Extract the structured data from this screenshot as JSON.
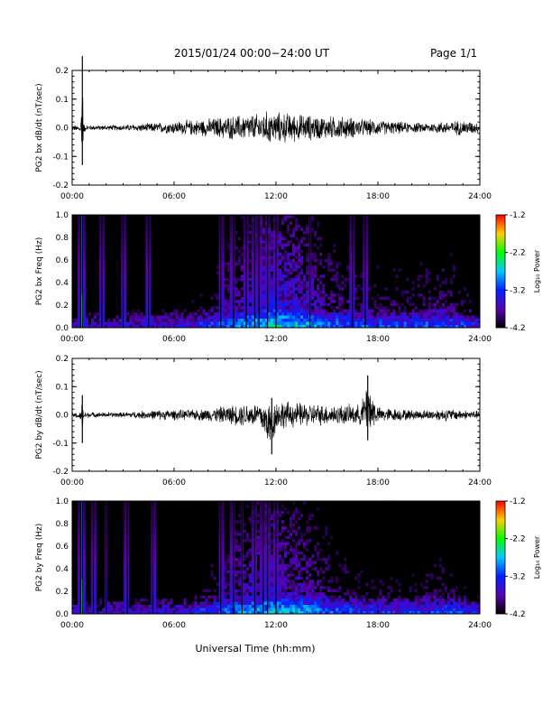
{
  "header": {
    "title": "2015/01/24  00:00−24:00 UT",
    "page": "Page 1/1"
  },
  "xaxis_label": "Universal Time (hh:mm)",
  "colorbar": {
    "label": "Log₁₀ Power",
    "ticks": [
      "-1.2",
      "-2.2",
      "-3.2",
      "-4.2"
    ],
    "colors": [
      "#ff0000",
      "#ffd000",
      "#00ff00",
      "#00c8ff",
      "#0020ff",
      "#5a00b4",
      "#000000"
    ]
  },
  "chart_data": [
    {
      "type": "line",
      "panel": "bx_timeseries",
      "ylabel": "PG2 bx dB/dt (nT/sec)",
      "xlim": [
        "00:00",
        "24:00"
      ],
      "ylim": [
        -0.2,
        0.2
      ],
      "xticks": [
        "00:00",
        "06:00",
        "12:00",
        "18:00",
        "24:00"
      ],
      "yticks": [
        "-0.2",
        "-0.1",
        "0.0",
        "0.1",
        "0.2"
      ],
      "series": [
        {
          "x": [
            "00:00",
            "00:30",
            "00:36",
            "00:40",
            "00:48",
            "01:00",
            "02:00",
            "03:00",
            "04:00",
            "05:00",
            "06:00",
            "07:00",
            "08:00",
            "09:00",
            "10:00",
            "11:00",
            "11:30",
            "12:00",
            "12:30",
            "13:00",
            "14:00",
            "15:00",
            "16:00",
            "17:00",
            "18:00",
            "19:00",
            "20:00",
            "21:00",
            "22:00",
            "23:00",
            "24:00"
          ],
          "envelope_max": [
            0.01,
            0.01,
            0.25,
            0.02,
            0.01,
            0.01,
            0.01,
            0.012,
            0.015,
            0.02,
            0.025,
            0.03,
            0.035,
            0.045,
            0.05,
            0.055,
            0.065,
            0.06,
            0.06,
            0.055,
            0.05,
            0.045,
            0.045,
            0.035,
            0.03,
            0.025,
            0.02,
            0.02,
            0.025,
            0.03,
            0.02
          ],
          "envelope_min": [
            -0.01,
            -0.02,
            -0.13,
            -0.03,
            -0.01,
            -0.01,
            -0.01,
            -0.012,
            -0.015,
            -0.02,
            -0.025,
            -0.03,
            -0.035,
            -0.045,
            -0.05,
            -0.055,
            -0.065,
            -0.06,
            -0.06,
            -0.055,
            -0.05,
            -0.045,
            -0.045,
            -0.035,
            -0.03,
            -0.025,
            -0.02,
            -0.02,
            -0.025,
            -0.03,
            -0.02
          ]
        }
      ]
    },
    {
      "type": "heatmap",
      "panel": "bx_spectrogram",
      "ylabel": "PG2 bx Freq (Hz)",
      "xlim": [
        "00:00",
        "24:00"
      ],
      "ylim": [
        0.0,
        1.0
      ],
      "xticks": [
        "00:00",
        "06:00",
        "12:00",
        "18:00",
        "24:00"
      ],
      "yticks": [
        "0.0",
        "0.2",
        "0.4",
        "0.6",
        "0.8",
        "1.0"
      ],
      "zlim": [
        -4.2,
        -1.2
      ],
      "zlabel": "Log₁₀ Power",
      "band_peak_log10_power": {
        "x": [
          "00:00",
          "03:00",
          "06:00",
          "08:00",
          "10:00",
          "12:00",
          "14:00",
          "16:00",
          "18:00",
          "20:00",
          "22:00",
          "24:00"
        ],
        "z": [
          -3.6,
          -3.5,
          -3.4,
          -3.2,
          -2.8,
          -2.5,
          -2.7,
          -3.0,
          -3.1,
          -3.1,
          -3.0,
          -3.3
        ]
      },
      "broadband_spikes_hhmm": [
        "00:30",
        "00:36",
        "01:45",
        "03:00",
        "04:30",
        "08:45",
        "09:30",
        "10:15",
        "10:45",
        "11:00",
        "11:30",
        "12:00",
        "14:00",
        "16:30",
        "17:15"
      ]
    },
    {
      "type": "line",
      "panel": "by_timeseries",
      "ylabel": "PG2 by dB/dt (nT/sec)",
      "xlim": [
        "00:00",
        "24:00"
      ],
      "ylim": [
        -0.2,
        0.2
      ],
      "xticks": [
        "00:00",
        "06:00",
        "12:00",
        "18:00",
        "24:00"
      ],
      "yticks": [
        "-0.2",
        "-0.1",
        "0.0",
        "0.1",
        "0.2"
      ],
      "series": [
        {
          "x": [
            "00:00",
            "00:30",
            "00:36",
            "00:40",
            "01:00",
            "02:00",
            "03:00",
            "04:00",
            "05:00",
            "06:00",
            "07:00",
            "08:00",
            "09:00",
            "10:00",
            "11:00",
            "11:45",
            "12:00",
            "12:30",
            "13:00",
            "14:00",
            "15:00",
            "16:00",
            "17:00",
            "17:24",
            "18:00",
            "19:00",
            "20:00",
            "21:00",
            "22:00",
            "23:00",
            "24:00"
          ],
          "envelope_max": [
            0.01,
            0.01,
            0.07,
            0.015,
            0.01,
            0.01,
            0.01,
            0.015,
            0.02,
            0.02,
            0.02,
            0.025,
            0.035,
            0.045,
            0.05,
            0.06,
            0.06,
            0.055,
            0.05,
            0.045,
            0.04,
            0.04,
            0.04,
            0.14,
            0.03,
            0.025,
            0.02,
            0.02,
            0.025,
            0.02,
            0.015
          ],
          "envelope_min": [
            -0.01,
            -0.02,
            -0.1,
            -0.02,
            -0.01,
            -0.01,
            -0.01,
            -0.015,
            -0.02,
            -0.02,
            -0.02,
            -0.025,
            -0.035,
            -0.045,
            -0.05,
            -0.14,
            -0.06,
            -0.055,
            -0.05,
            -0.045,
            -0.04,
            -0.04,
            -0.04,
            -0.09,
            -0.03,
            -0.025,
            -0.02,
            -0.02,
            -0.025,
            -0.02,
            -0.015
          ]
        }
      ]
    },
    {
      "type": "heatmap",
      "panel": "by_spectrogram",
      "ylabel": "PG2 by Freq (Hz)",
      "xlim": [
        "00:00",
        "24:00"
      ],
      "ylim": [
        0.0,
        1.0
      ],
      "xticks": [
        "00:00",
        "06:00",
        "12:00",
        "18:00",
        "24:00"
      ],
      "yticks": [
        "0.0",
        "0.2",
        "0.4",
        "0.6",
        "0.8",
        "1.0"
      ],
      "zlim": [
        -4.2,
        -1.2
      ],
      "zlabel": "Log₁₀ Power",
      "band_peak_log10_power": {
        "x": [
          "00:00",
          "03:00",
          "06:00",
          "08:00",
          "10:00",
          "12:00",
          "14:00",
          "16:00",
          "18:00",
          "20:00",
          "22:00",
          "24:00"
        ],
        "z": [
          -3.6,
          -3.5,
          -3.4,
          -3.2,
          -2.8,
          -2.6,
          -2.8,
          -3.1,
          -3.2,
          -3.2,
          -3.1,
          -3.3
        ]
      },
      "broadband_spikes_hhmm": [
        "00:30",
        "00:36",
        "01:15",
        "02:00",
        "03:15",
        "04:45",
        "08:45",
        "09:30",
        "10:00",
        "10:45",
        "11:15",
        "11:30",
        "12:00"
      ]
    }
  ]
}
